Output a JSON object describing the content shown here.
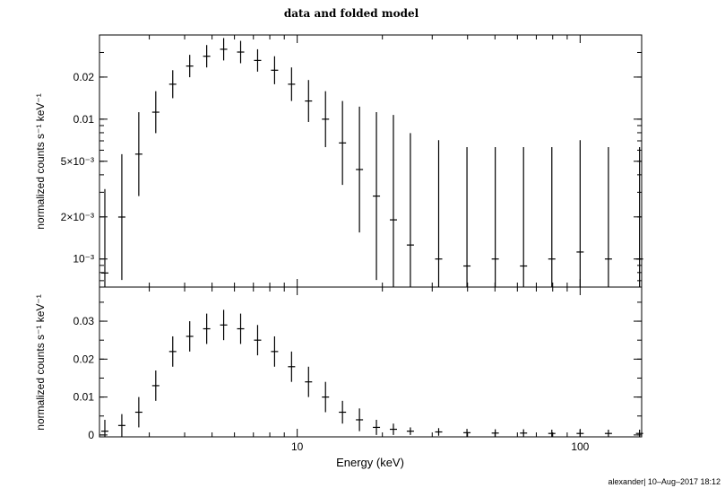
{
  "title": "data and folded model",
  "xlabel": "Energy (keV)",
  "ylabel_top": "normalized counts s⁻¹ keV⁻¹",
  "ylabel_bottom": "normalized counts s⁻¹ keV⁻¹",
  "stamp": "alexander| 10–Aug–2017 18:12",
  "colors": {
    "ink": "#000000",
    "background": "#ffffff"
  },
  "chart_data": [
    {
      "type": "scatter",
      "panel": "top",
      "xscale": "log",
      "yscale": "log",
      "xlim": [
        2.0,
        165
      ],
      "ylim": [
        0.00063,
        0.04
      ],
      "xticks": [
        {
          "value": 10,
          "label": "10"
        },
        {
          "value": 100,
          "label": "100"
        }
      ],
      "yticks": [
        {
          "value": 0.02,
          "label": "0.02"
        },
        {
          "value": 0.01,
          "label": "0.01"
        },
        {
          "value": 0.005,
          "label": "5×10⁻³"
        },
        {
          "value": 0.002,
          "label": "2×10⁻³"
        },
        {
          "value": 0.001,
          "label": "10⁻³"
        }
      ],
      "x_log10": [
        0.32,
        0.38,
        0.44,
        0.5,
        0.56,
        0.62,
        0.68,
        0.74,
        0.8,
        0.86,
        0.92,
        0.98,
        1.04,
        1.1,
        1.16,
        1.22,
        1.28,
        1.34,
        1.4,
        1.5,
        1.6,
        1.7,
        1.8,
        1.9,
        2.0,
        2.1,
        2.21
      ],
      "y_log10": [
        -3.1,
        -2.7,
        -2.25,
        -1.95,
        -1.75,
        -1.62,
        -1.55,
        -1.5,
        -1.52,
        -1.58,
        -1.65,
        -1.75,
        -1.87,
        -2.0,
        -2.17,
        -2.36,
        -2.55,
        -2.72,
        -2.9,
        -3.0,
        -3.05,
        -3.0,
        -3.05,
        -3.0,
        -2.95,
        -3.0,
        -3.0
      ],
      "yerr_dex": [
        0.6,
        0.45,
        0.3,
        0.15,
        0.1,
        0.08,
        0.08,
        0.08,
        0.08,
        0.08,
        0.1,
        0.12,
        0.15,
        0.2,
        0.3,
        0.45,
        0.6,
        0.75,
        0.8,
        0.85,
        0.85,
        0.8,
        0.85,
        0.8,
        0.8,
        0.8,
        0.8
      ]
    },
    {
      "type": "scatter",
      "panel": "bottom",
      "xscale": "log",
      "yscale": "linear",
      "xlim": [
        2.0,
        165
      ],
      "ylim": [
        -0.0005,
        0.039
      ],
      "xticks": [
        {
          "value": 10,
          "label": "10"
        },
        {
          "value": 100,
          "label": "100"
        }
      ],
      "yticks": [
        {
          "value": 0,
          "label": "0"
        },
        {
          "value": 0.01,
          "label": "0.01"
        },
        {
          "value": 0.02,
          "label": "0.02"
        },
        {
          "value": 0.03,
          "label": "0.03"
        }
      ],
      "x_log10": [
        0.32,
        0.38,
        0.44,
        0.5,
        0.56,
        0.62,
        0.68,
        0.74,
        0.8,
        0.86,
        0.92,
        0.98,
        1.04,
        1.1,
        1.16,
        1.22,
        1.28,
        1.34,
        1.4,
        1.5,
        1.6,
        1.7,
        1.8,
        1.9,
        2.0,
        2.1,
        2.21
      ],
      "y": [
        0.001,
        0.0025,
        0.006,
        0.013,
        0.022,
        0.026,
        0.028,
        0.029,
        0.028,
        0.025,
        0.022,
        0.018,
        0.014,
        0.01,
        0.006,
        0.004,
        0.002,
        0.0015,
        0.001,
        0.0008,
        0.0006,
        0.0005,
        0.0005,
        0.0004,
        0.0004,
        0.0004,
        0.0004
      ],
      "yerr": [
        0.003,
        0.003,
        0.004,
        0.004,
        0.004,
        0.004,
        0.004,
        0.004,
        0.004,
        0.004,
        0.004,
        0.004,
        0.004,
        0.004,
        0.003,
        0.003,
        0.002,
        0.0015,
        0.001,
        0.001,
        0.001,
        0.001,
        0.001,
        0.001,
        0.001,
        0.001,
        0.001
      ]
    }
  ]
}
